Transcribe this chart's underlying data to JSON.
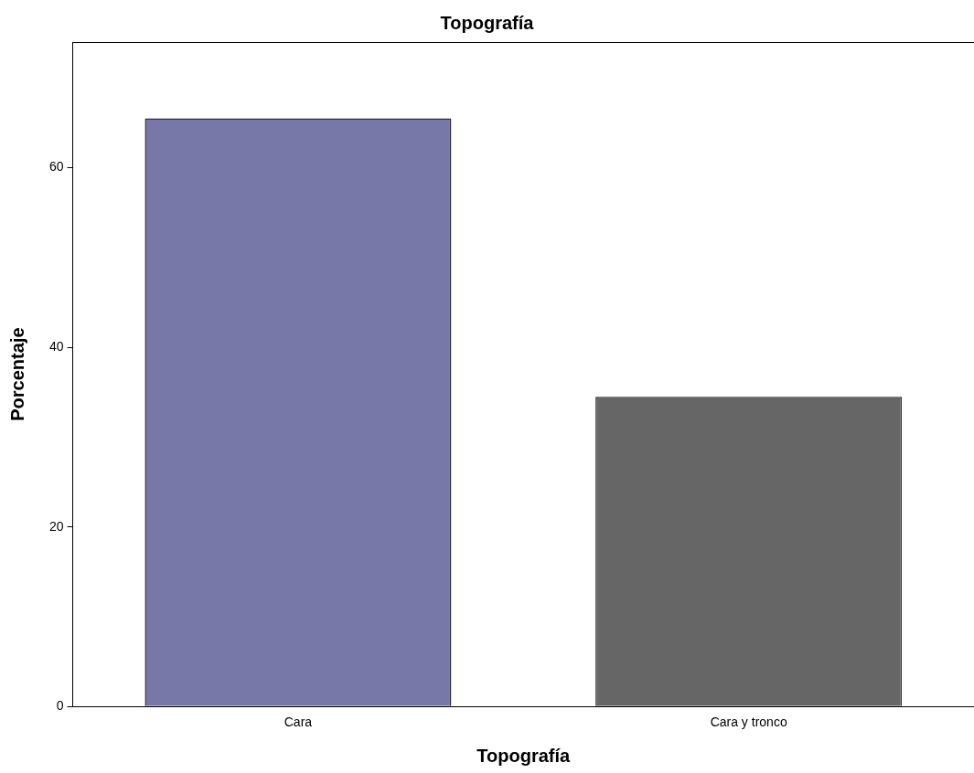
{
  "chart_data": {
    "type": "bar",
    "title": "Topografía",
    "xlabel": "Topografía",
    "ylabel": "Porcentaje",
    "categories": [
      "Cara",
      "Cara y tronco"
    ],
    "values": [
      65.5,
      34.5
    ],
    "colors": [
      "#7878a8",
      "#666666"
    ],
    "ylim": [
      0,
      74
    ],
    "yticks": [
      0,
      20,
      40,
      60
    ],
    "grid": false,
    "legend": false
  }
}
